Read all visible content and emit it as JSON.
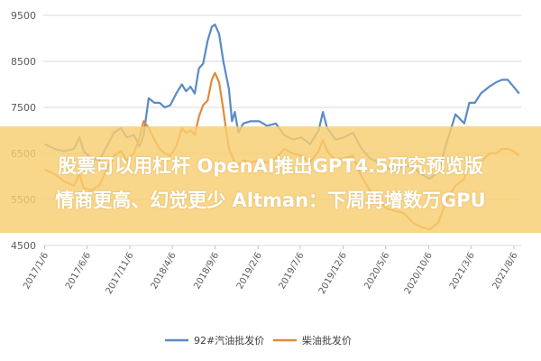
{
  "caption": {
    "line1": "股票可以用杠杆 OpenAI推出GPT4.5研究预览版",
    "line2": "情商更高、幻觉更少 Altman：下周再增数万GPU"
  },
  "chart_data": {
    "type": "line",
    "title": "",
    "xlabel": "",
    "ylabel": "",
    "ylim": [
      4500,
      9500
    ],
    "yticks": [
      4500,
      5500,
      6500,
      7500,
      8500,
      9500
    ],
    "xlim": [
      "2017-01-01",
      "2021-09-01"
    ],
    "grid": true,
    "legend_position": "bottom",
    "x_tick_labels": [
      "2017/1/6",
      "2017/6/6",
      "2017/11/6",
      "2018/4/6",
      "2018/9/6",
      "2019/2/6",
      "2019/7/6",
      "2019/12/6",
      "2020/5/6",
      "2020/10/6",
      "2021/3/6",
      "2021/8/6"
    ],
    "x_tick_dates": [
      "2017-01-06",
      "2017-06-06",
      "2017-11-06",
      "2018-04-06",
      "2018-09-06",
      "2019-02-06",
      "2019-07-06",
      "2019-12-06",
      "2020-05-06",
      "2020-10-06",
      "2021-03-06",
      "2021-08-06"
    ],
    "series": [
      {
        "name": "92#汽油批发价",
        "color": "#5b8ac6",
        "points": [
          [
            "2017-01-06",
            6700
          ],
          [
            "2017-02-10",
            6600
          ],
          [
            "2017-03-15",
            6550
          ],
          [
            "2017-04-20",
            6600
          ],
          [
            "2017-05-10",
            6850
          ],
          [
            "2017-05-25",
            6550
          ],
          [
            "2017-06-20",
            6400
          ],
          [
            "2017-07-20",
            6350
          ],
          [
            "2017-08-15",
            6650
          ],
          [
            "2017-09-10",
            6950
          ],
          [
            "2017-10-05",
            7050
          ],
          [
            "2017-10-25",
            6850
          ],
          [
            "2017-11-20",
            6900
          ],
          [
            "2017-12-10",
            6650
          ],
          [
            "2017-12-25",
            6900
          ],
          [
            "2018-01-12",
            7700
          ],
          [
            "2018-02-01",
            7600
          ],
          [
            "2018-02-20",
            7600
          ],
          [
            "2018-03-10",
            7500
          ],
          [
            "2018-03-30",
            7550
          ],
          [
            "2018-04-20",
            7800
          ],
          [
            "2018-05-10",
            8000
          ],
          [
            "2018-05-25",
            7850
          ],
          [
            "2018-06-10",
            7950
          ],
          [
            "2018-06-25",
            7800
          ],
          [
            "2018-07-10",
            8350
          ],
          [
            "2018-07-25",
            8450
          ],
          [
            "2018-08-10",
            8950
          ],
          [
            "2018-08-25",
            9250
          ],
          [
            "2018-09-05",
            9300
          ],
          [
            "2018-09-20",
            9100
          ],
          [
            "2018-10-05",
            8500
          ],
          [
            "2018-10-15",
            8200
          ],
          [
            "2018-10-25",
            7900
          ],
          [
            "2018-11-05",
            7200
          ],
          [
            "2018-11-15",
            7400
          ],
          [
            "2018-11-28",
            6950
          ],
          [
            "2018-12-15",
            7150
          ],
          [
            "2019-01-10",
            7200
          ],
          [
            "2019-02-10",
            7200
          ],
          [
            "2019-03-10",
            7100
          ],
          [
            "2019-04-10",
            7150
          ],
          [
            "2019-05-10",
            6900
          ],
          [
            "2019-06-10",
            6800
          ],
          [
            "2019-07-10",
            6850
          ],
          [
            "2019-08-10",
            6700
          ],
          [
            "2019-09-10",
            7000
          ],
          [
            "2019-09-25",
            7400
          ],
          [
            "2019-10-10",
            7050
          ],
          [
            "2019-11-10",
            6800
          ],
          [
            "2019-12-10",
            6850
          ],
          [
            "2020-01-10",
            6950
          ],
          [
            "2020-02-10",
            6600
          ],
          [
            "2020-03-10",
            6400
          ],
          [
            "2020-04-10",
            6300
          ],
          [
            "2020-05-10",
            6200
          ],
          [
            "2020-06-10",
            6100
          ],
          [
            "2020-07-10",
            6250
          ],
          [
            "2020-08-10",
            6200
          ],
          [
            "2020-09-10",
            6050
          ],
          [
            "2020-10-10",
            5950
          ],
          [
            "2020-11-10",
            6100
          ],
          [
            "2020-12-10",
            6750
          ],
          [
            "2021-01-10",
            7350
          ],
          [
            "2021-02-10",
            7150
          ],
          [
            "2021-02-28",
            7600
          ],
          [
            "2021-03-20",
            7600
          ],
          [
            "2021-04-10",
            7800
          ],
          [
            "2021-05-10",
            7950
          ],
          [
            "2021-06-05",
            8050
          ],
          [
            "2021-06-25",
            8100
          ],
          [
            "2021-07-15",
            8100
          ],
          [
            "2021-08-05",
            7950
          ],
          [
            "2021-08-25",
            7800
          ]
        ]
      },
      {
        "name": "柴油批发价",
        "color": "#e08a3a",
        "points": [
          [
            "2017-01-06",
            6150
          ],
          [
            "2017-02-10",
            6050
          ],
          [
            "2017-03-15",
            5900
          ],
          [
            "2017-04-20",
            5800
          ],
          [
            "2017-05-10",
            6050
          ],
          [
            "2017-05-25",
            5750
          ],
          [
            "2017-06-20",
            5700
          ],
          [
            "2017-07-20",
            5800
          ],
          [
            "2017-08-15",
            6150
          ],
          [
            "2017-09-10",
            6450
          ],
          [
            "2017-10-05",
            6550
          ],
          [
            "2017-10-25",
            6350
          ],
          [
            "2017-11-20",
            6500
          ],
          [
            "2017-12-10",
            6850
          ],
          [
            "2017-12-25",
            7200
          ],
          [
            "2018-01-12",
            7050
          ],
          [
            "2018-02-01",
            6800
          ],
          [
            "2018-02-20",
            6600
          ],
          [
            "2018-03-10",
            6500
          ],
          [
            "2018-03-30",
            6450
          ],
          [
            "2018-04-20",
            6650
          ],
          [
            "2018-05-10",
            7050
          ],
          [
            "2018-05-25",
            6950
          ],
          [
            "2018-06-10",
            7000
          ],
          [
            "2018-06-25",
            6900
          ],
          [
            "2018-07-10",
            7300
          ],
          [
            "2018-07-25",
            7550
          ],
          [
            "2018-08-10",
            7650
          ],
          [
            "2018-08-25",
            8100
          ],
          [
            "2018-09-05",
            8250
          ],
          [
            "2018-09-20",
            8050
          ],
          [
            "2018-10-05",
            7450
          ],
          [
            "2018-10-15",
            7000
          ],
          [
            "2018-10-25",
            6600
          ],
          [
            "2018-11-05",
            6450
          ],
          [
            "2018-11-15",
            6300
          ],
          [
            "2018-11-28",
            6250
          ],
          [
            "2018-12-15",
            6350
          ],
          [
            "2019-01-10",
            6300
          ],
          [
            "2019-02-10",
            6350
          ],
          [
            "2019-03-10",
            6300
          ],
          [
            "2019-04-10",
            6400
          ],
          [
            "2019-05-10",
            6600
          ],
          [
            "2019-06-10",
            6500
          ],
          [
            "2019-07-10",
            6450
          ],
          [
            "2019-08-10",
            6300
          ],
          [
            "2019-09-10",
            6550
          ],
          [
            "2019-09-25",
            6800
          ],
          [
            "2019-10-10",
            6550
          ],
          [
            "2019-11-10",
            6350
          ],
          [
            "2019-12-10",
            6400
          ],
          [
            "2020-01-10",
            6450
          ],
          [
            "2020-02-10",
            6000
          ],
          [
            "2020-03-10",
            5700
          ],
          [
            "2020-04-10",
            5500
          ],
          [
            "2020-05-10",
            5300
          ],
          [
            "2020-06-10",
            5250
          ],
          [
            "2020-07-10",
            5200
          ],
          [
            "2020-08-10",
            5000
          ],
          [
            "2020-09-10",
            4900
          ],
          [
            "2020-10-10",
            4850
          ],
          [
            "2020-11-10",
            5000
          ],
          [
            "2020-12-10",
            5500
          ],
          [
            "2021-01-10",
            5800
          ],
          [
            "2021-02-10",
            5950
          ],
          [
            "2021-02-28",
            6350
          ],
          [
            "2021-03-20",
            6250
          ],
          [
            "2021-04-10",
            6300
          ],
          [
            "2021-05-10",
            6500
          ],
          [
            "2021-06-05",
            6500
          ],
          [
            "2021-06-25",
            6600
          ],
          [
            "2021-07-15",
            6600
          ],
          [
            "2021-08-05",
            6550
          ],
          [
            "2021-08-25",
            6450
          ]
        ]
      }
    ]
  }
}
